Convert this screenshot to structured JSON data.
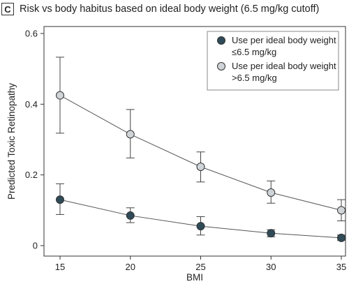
{
  "panel_label": "C",
  "chart_data": {
    "type": "line",
    "title": "Risk vs body habitus based on ideal body weight (6.5 mg/kg cutoff)",
    "xlabel": "BMI",
    "ylabel": "Predicted Toxic Retinopathy",
    "x": [
      15,
      20,
      25,
      30,
      35
    ],
    "xticks": [
      "15",
      "20",
      "25",
      "30",
      "35"
    ],
    "yticks": [
      "0",
      "0.2",
      "0.4",
      "0.6"
    ],
    "xlim": [
      15,
      35
    ],
    "ylim": [
      0,
      0.6
    ],
    "grid": false,
    "legend_position": "top-right",
    "series": [
      {
        "name": [
          "Use per ideal body weight",
          "≤6.5 mg/kg"
        ],
        "marker_fill": "#2f4b58",
        "values": [
          0.13,
          0.085,
          0.055,
          0.035,
          0.022
        ],
        "err_low": [
          0.088,
          0.065,
          0.03,
          0.025,
          0.015
        ],
        "err_high": [
          0.175,
          0.107,
          0.082,
          0.045,
          0.03
        ]
      },
      {
        "name": [
          "Use per ideal body weight",
          ">6.5 mg/kg"
        ],
        "marker_fill": "#cfd4d8",
        "values": [
          0.425,
          0.315,
          0.223,
          0.15,
          0.1
        ],
        "err_low": [
          0.318,
          0.248,
          0.18,
          0.12,
          0.07
        ],
        "err_high": [
          0.533,
          0.385,
          0.265,
          0.183,
          0.13
        ]
      }
    ]
  }
}
